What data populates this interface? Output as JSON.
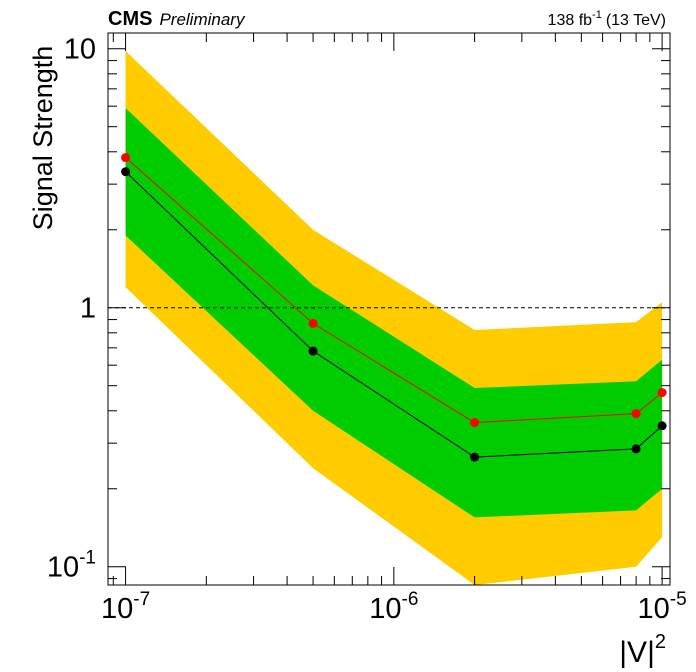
{
  "header": {
    "experiment": "CMS",
    "status": "Preliminary",
    "lumi_value": "138 fb",
    "lumi_exp": "-1",
    "energy": "(13 TeV)"
  },
  "colors": {
    "band95": "#ffcc00",
    "band68": "#00cc00",
    "observed": "#000000",
    "expected": "#ff0000",
    "frame": "#000000"
  },
  "chart_data": {
    "type": "line",
    "title": "",
    "xlabel": "|V|",
    "xlabel_exp": "2",
    "ylabel": "Signal Strength",
    "xscale": "log",
    "yscale": "log",
    "xlim": [
      8.6e-08,
      1.07e-05
    ],
    "ylim": [
      0.085,
      11.5
    ],
    "x_ticks": [
      {
        "value": 1e-07,
        "base": "10",
        "exp": "-7"
      },
      {
        "value": 1e-06,
        "base": "10",
        "exp": "-6"
      },
      {
        "value": 1e-05,
        "base": "10",
        "exp": "-5"
      }
    ],
    "y_ticks": [
      {
        "value": 0.1,
        "base": "10",
        "exp": "-1"
      },
      {
        "value": 1,
        "base": "1",
        "exp": ""
      },
      {
        "value": 10,
        "base": "10",
        "exp": ""
      }
    ],
    "reference_line": {
      "y": 1,
      "style": "dashed"
    },
    "x": [
      1e-07,
      5e-07,
      2e-06,
      8e-06,
      1e-05
    ],
    "series": [
      {
        "name": "band_95",
        "lower": [
          1.2,
          0.24,
          0.085,
          0.1,
          0.13
        ],
        "upper": [
          9.8,
          2.0,
          0.82,
          0.88,
          1.05
        ]
      },
      {
        "name": "band_68",
        "lower": [
          1.9,
          0.4,
          0.155,
          0.165,
          0.2
        ],
        "upper": [
          5.9,
          1.22,
          0.49,
          0.52,
          0.63
        ]
      },
      {
        "name": "expected",
        "values": [
          3.8,
          0.87,
          0.36,
          0.39,
          0.47
        ]
      },
      {
        "name": "observed",
        "values": [
          3.35,
          0.68,
          0.265,
          0.285,
          0.35
        ]
      }
    ]
  }
}
